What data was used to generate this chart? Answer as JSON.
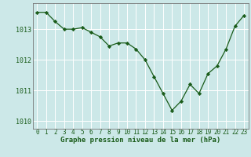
{
  "x": [
    0,
    1,
    2,
    3,
    4,
    5,
    6,
    7,
    8,
    9,
    10,
    11,
    12,
    13,
    14,
    15,
    16,
    17,
    18,
    19,
    20,
    21,
    22,
    23
  ],
  "y": [
    1013.55,
    1013.55,
    1013.25,
    1013.0,
    1013.0,
    1013.05,
    1012.9,
    1012.75,
    1012.45,
    1012.55,
    1012.55,
    1012.35,
    1012.0,
    1011.45,
    1010.9,
    1010.35,
    1010.65,
    1011.2,
    1010.9,
    1011.55,
    1011.8,
    1012.35,
    1013.1,
    1013.45
  ],
  "line_color": "#1a5c1a",
  "marker_color": "#1a5c1a",
  "bg_color": "#cce8e8",
  "grid_color": "#ffffff",
  "xlabel": "Graphe pression niveau de la mer (hPa)",
  "xlabel_color": "#1a5c1a",
  "ylim": [
    1009.75,
    1013.85
  ],
  "yticks": [
    1010,
    1011,
    1012,
    1013
  ],
  "xticks": [
    0,
    1,
    2,
    3,
    4,
    5,
    6,
    7,
    8,
    9,
    10,
    11,
    12,
    13,
    14,
    15,
    16,
    17,
    18,
    19,
    20,
    21,
    22,
    23
  ],
  "tick_fontsize": 5.5,
  "xlabel_fontsize": 6.5,
  "ytick_fontsize": 6.0
}
